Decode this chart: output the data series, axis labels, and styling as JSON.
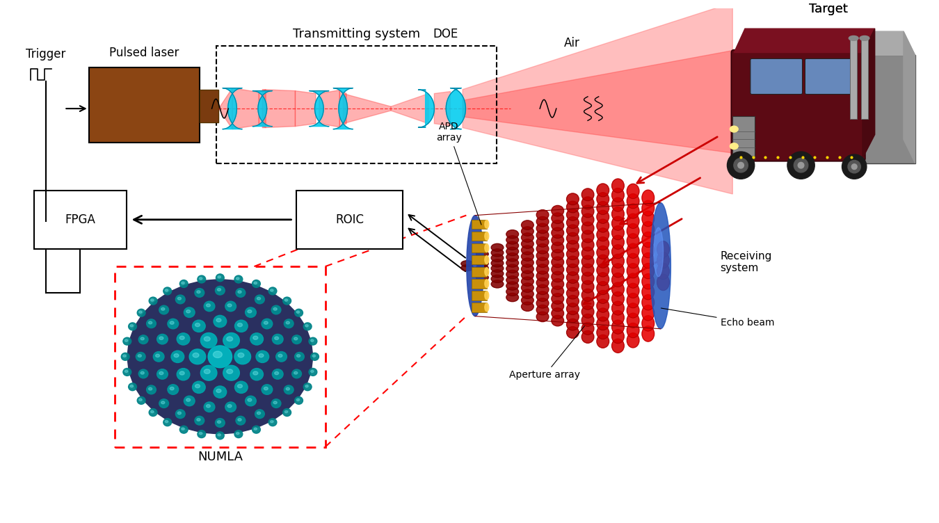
{
  "bg_color": "#ffffff",
  "labels": {
    "trigger": "Trigger",
    "pulsed_laser": "Pulsed laser",
    "transmitting_system": "Transmitting system",
    "doe": "DOE",
    "air": "Air",
    "target": "Target",
    "apd_array": "APD\narray",
    "roic": "ROIC",
    "fpga": "FPGA",
    "numla": "NUMLA",
    "receiving_system": "Receiving\nsystem",
    "echo_beam": "Echo beam",
    "aperture_array": "Aperture array"
  },
  "figsize": [
    13.5,
    7.52
  ],
  "dpi": 100
}
